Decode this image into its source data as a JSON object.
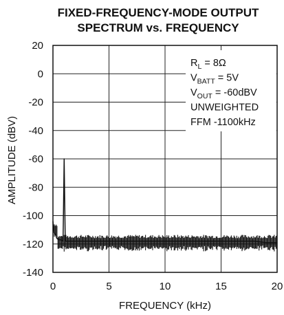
{
  "chart_data": {
    "type": "line",
    "title": [
      "FIXED-FREQUENCY-MODE OUTPUT",
      "SPECTRUM vs. FREQUENCY"
    ],
    "xlabel": "FREQUENCY (kHz)",
    "ylabel": "AMPLITUDE (dBV)",
    "xlim": [
      0,
      20
    ],
    "ylim": [
      -140,
      20
    ],
    "xticks": [
      "0",
      "5",
      "10",
      "15",
      "20"
    ],
    "yticks": [
      "20",
      "0",
      "-20",
      "-40",
      "-60",
      "-80",
      "-100",
      "-120",
      "-140"
    ],
    "grid": true,
    "annotations": [
      {
        "base": "R",
        "sub": "L",
        "rest": " = 8Ω"
      },
      {
        "base": "V",
        "sub": "BATT",
        "rest": " = 5V"
      },
      {
        "base": "V",
        "sub": "OUT",
        "rest": " = -60dBV"
      },
      {
        "base": "UNWEIGHTED",
        "sub": "",
        "rest": ""
      },
      {
        "base": "FFM -1100kHz",
        "sub": "",
        "rest": ""
      }
    ],
    "series": [
      {
        "x": [
          0,
          0.05,
          0.1,
          0.2,
          0.35,
          0.5,
          0.7,
          0.9,
          0.95,
          1.0,
          1.05,
          1.1,
          1.3,
          1.6,
          2,
          3,
          4,
          5,
          6,
          7,
          8,
          9,
          10,
          11,
          12,
          13,
          14,
          15,
          16,
          17,
          18,
          19,
          20
        ],
        "y": [
          -104,
          -108,
          -112,
          -113,
          -116,
          -117,
          -117,
          -118,
          -90,
          -60,
          -90,
          -118,
          -118,
          -118,
          -118,
          -118,
          -118,
          -118,
          -118,
          -118,
          -118,
          -118,
          -118,
          -118,
          -118,
          -118,
          -118,
          -118,
          -118,
          -118,
          -118,
          -119,
          -119
        ]
      }
    ]
  }
}
